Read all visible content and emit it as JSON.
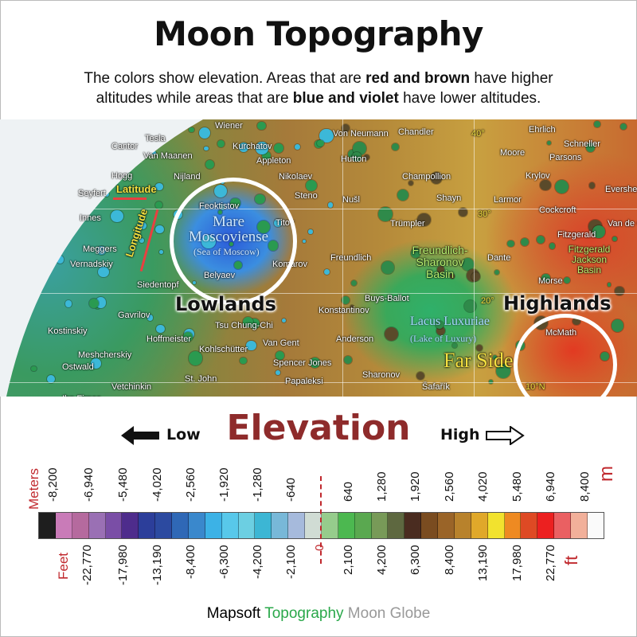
{
  "header": {
    "title": "Moon Topography",
    "subtitle_line1_pre": "The colors show elevation. Areas that are ",
    "subtitle_line1_bold": "red and brown",
    "subtitle_line1_post": " have higher",
    "subtitle_line2_pre": "altitudes while areas that are ",
    "subtitle_line2_bold": "blue and violet",
    "subtitle_line2_post": " have lower altitudes."
  },
  "map": {
    "callouts": {
      "lowlands": "Lowlands",
      "highlands": "Highlands"
    },
    "guides": {
      "latitude": "Latitude",
      "longitude": "Longitude"
    },
    "features": {
      "mare": "Mare Moscoviense",
      "mare_en": "(Sea of Moscow)",
      "lacus": "Lacus Luxuriae",
      "lacus_en": "(Lake of Luxury)",
      "basin1": "Freundlich-Sharonov Basin",
      "basin2": "Fitzgerald Jackson Basin",
      "far_side": "Far Side"
    },
    "lat_labels": [
      "40°",
      "30°",
      "20°",
      "10°N"
    ],
    "craters": [
      "Wiener",
      "Tesla",
      "Cantor",
      "Van Maanen",
      "Kurchatov",
      "Appleton",
      "Hogg",
      "Nijland",
      "Nikolaev",
      "Seyfert",
      "Steno",
      "Feoktistov",
      "Innes",
      "Titov",
      "Meggers",
      "Vernadskiy",
      "Komarov",
      "Belyaev",
      "Siedentopf",
      "Gavrilov",
      "Tsu Chung-Chi",
      "Kostinskiy",
      "Hoffmeister",
      "Kohlschütter",
      "Van Gent",
      "Meshcherskiy",
      "Ostwald",
      "Spencer Jones",
      "St. John",
      "Papaleksi",
      "Vetchinkin",
      "Ibn Firnas",
      "Von Neumann",
      "Chandler",
      "Ehrlich",
      "Schneller",
      "Moore",
      "Parsons",
      "Hutton",
      "Champollion",
      "Krylov",
      "Evershed",
      "Nušl",
      "Shayn",
      "Larmor",
      "Cockcroft",
      "Trümpler",
      "Van de Graaff",
      "Fitzgerald",
      "Freundlich",
      "Dante",
      "Morse",
      "Buys-Ballot",
      "Konstantinov",
      "McMath",
      "Anderson",
      "Sharonov",
      "Šafařík"
    ],
    "colors": {
      "lowland": "#2b59d8",
      "highland": "#e23a22",
      "ring": "#ffffff"
    }
  },
  "legend": {
    "title": "Elevation",
    "low_label": "Low",
    "high_label": "High",
    "meters_unit_label": "Meters",
    "meters_unit_short": "m",
    "feet_unit_label": "Feet",
    "feet_unit_short": "ft",
    "meters_ticks": [
      "-8,200",
      "-6,940",
      "-5,480",
      "-4,020",
      "-2,560",
      "-1,920",
      "-1,280",
      "-640",
      "640",
      "1,280",
      "1,920",
      "2,560",
      "4,020",
      "5,480",
      "6,940",
      "8,400"
    ],
    "feet_ticks": [
      "-22,770",
      "-17,980",
      "-13,190",
      "-8,400",
      "-6,300",
      "-4,200",
      "-2,100",
      "0",
      "2,100",
      "4,200",
      "6,300",
      "8,400",
      "13,190",
      "17,980",
      "22,770"
    ],
    "color_scale": [
      "#1e1e1e",
      "#c97bb8",
      "#b56a9e",
      "#9a70b4",
      "#7a4ea6",
      "#4e2c8c",
      "#2c3e9a",
      "#2c4aa0",
      "#2f68b6",
      "#3a88cc",
      "#3cb2e6",
      "#58c8ea",
      "#6ccfe2",
      "#3cb6d4",
      "#78b8d8",
      "#a6badc",
      "#d0dcd4",
      "#96cc8c",
      "#4cb850",
      "#5aa850",
      "#789a58",
      "#5e6840",
      "#4a2c20",
      "#7a4c20",
      "#9a6428",
      "#b8822c",
      "#e0a82a",
      "#f2e22e",
      "#ee8a22",
      "#de4a24",
      "#ec2020",
      "#ea6062",
      "#f2b09a",
      "#fafafa"
    ],
    "accent_color": "#c0282d",
    "title_color": "#8e2b2b"
  },
  "footer": {
    "brand": "Mapsoft",
    "product": "Topography",
    "suffix": "Moon Globe",
    "product_color": "#2aa84a",
    "suffix_color": "#999999"
  }
}
